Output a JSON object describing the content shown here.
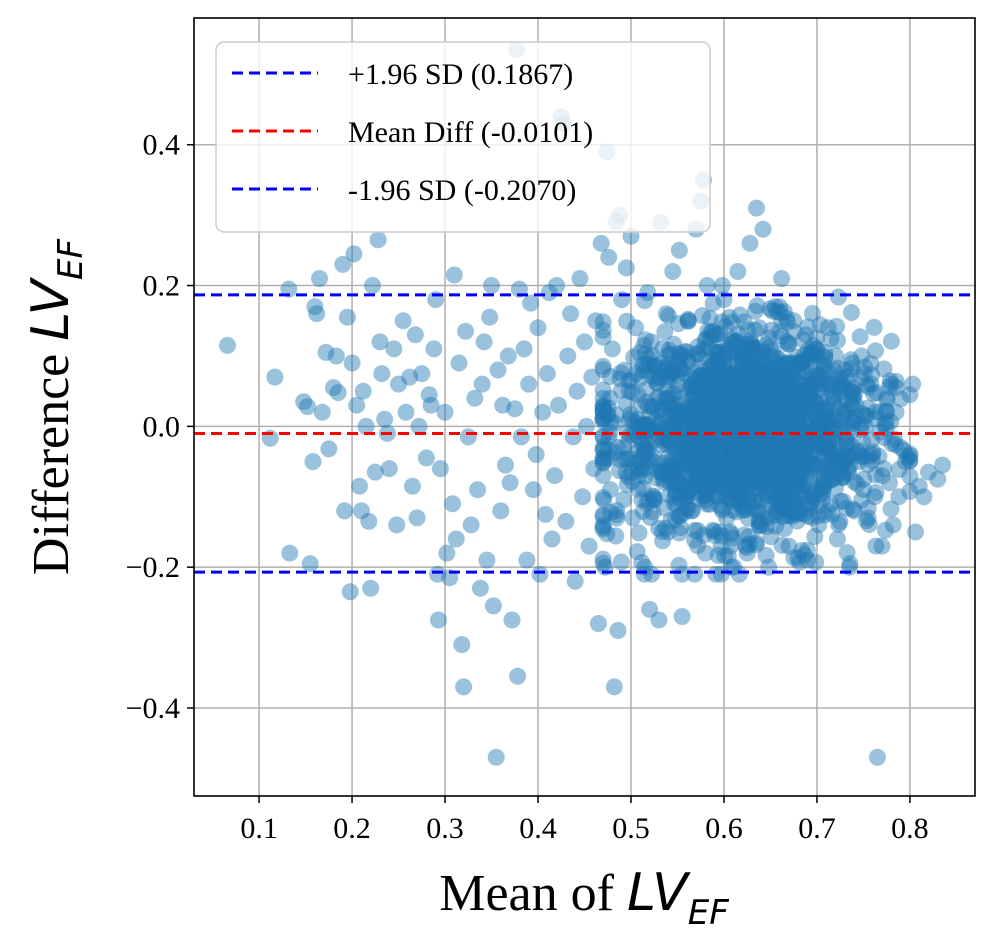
{
  "chart_data": {
    "type": "scatter",
    "title": "",
    "xlabel": {
      "prefix": "Mean of ",
      "symbol": "LV",
      "subscript": "EF"
    },
    "ylabel": {
      "prefix": "Difference ",
      "symbol": "LV",
      "subscript": "EF"
    },
    "xlim": [
      0.03,
      0.87
    ],
    "ylim": [
      -0.525,
      0.58
    ],
    "x_ticks": [
      {
        "value": 0.1,
        "label": "0.1"
      },
      {
        "value": 0.2,
        "label": "0.2"
      },
      {
        "value": 0.3,
        "label": "0.3"
      },
      {
        "value": 0.4,
        "label": "0.4"
      },
      {
        "value": 0.5,
        "label": "0.5"
      },
      {
        "value": 0.6,
        "label": "0.6"
      },
      {
        "value": 0.7,
        "label": "0.7"
      },
      {
        "value": 0.8,
        "label": "0.8"
      }
    ],
    "y_ticks": [
      {
        "value": 0.4,
        "label": "0.4"
      },
      {
        "value": 0.2,
        "label": "0.2"
      },
      {
        "value": 0.0,
        "label": "0.0"
      },
      {
        "value": -0.2,
        "label": "−0.2"
      },
      {
        "value": -0.4,
        "label": "−0.4"
      }
    ],
    "grid": true,
    "legend_position": "top-left",
    "point_color": "#1f77b4",
    "point_alpha": 0.45,
    "reference_lines": [
      {
        "name": "upper-limit",
        "label": "+1.96 SD (0.1867)",
        "value": 0.1867,
        "color": "#0000ff",
        "style": "dashed"
      },
      {
        "name": "mean-diff",
        "label": "Mean Diff (-0.0101)",
        "value": -0.0101,
        "color": "#ff0000",
        "style": "dashed"
      },
      {
        "name": "lower-limit",
        "label": "-1.96 SD (-0.2070)",
        "value": -0.207,
        "color": "#0000ff",
        "style": "dashed"
      }
    ],
    "scatter_points": [
      [
        0.066,
        0.115
      ],
      [
        0.112,
        -0.017
      ],
      [
        0.117,
        0.07
      ],
      [
        0.132,
        0.195
      ],
      [
        0.133,
        -0.18
      ],
      [
        0.148,
        0.035
      ],
      [
        0.152,
        0.028
      ],
      [
        0.155,
        -0.195
      ],
      [
        0.158,
        -0.05
      ],
      [
        0.16,
        0.17
      ],
      [
        0.162,
        0.16
      ],
      [
        0.165,
        0.21
      ],
      [
        0.168,
        0.02
      ],
      [
        0.172,
        0.105
      ],
      [
        0.175,
        -0.032
      ],
      [
        0.18,
        0.055
      ],
      [
        0.183,
        0.1
      ],
      [
        0.185,
        0.048
      ],
      [
        0.19,
        0.23
      ],
      [
        0.192,
        -0.12
      ],
      [
        0.195,
        0.155
      ],
      [
        0.198,
        -0.235
      ],
      [
        0.2,
        0.09
      ],
      [
        0.202,
        0.245
      ],
      [
        0.205,
        0.03
      ],
      [
        0.208,
        -0.085
      ],
      [
        0.21,
        -0.12
      ],
      [
        0.212,
        0.05
      ],
      [
        0.215,
        0.0
      ],
      [
        0.218,
        -0.135
      ],
      [
        0.22,
        -0.23
      ],
      [
        0.222,
        0.2
      ],
      [
        0.225,
        -0.065
      ],
      [
        0.228,
        0.265
      ],
      [
        0.23,
        0.12
      ],
      [
        0.232,
        0.075
      ],
      [
        0.235,
        0.01
      ],
      [
        0.238,
        -0.01
      ],
      [
        0.24,
        -0.06
      ],
      [
        0.245,
        0.11
      ],
      [
        0.248,
        -0.14
      ],
      [
        0.25,
        0.06
      ],
      [
        0.255,
        0.15
      ],
      [
        0.258,
        0.02
      ],
      [
        0.262,
        0.07
      ],
      [
        0.265,
        -0.085
      ],
      [
        0.268,
        0.13
      ],
      [
        0.27,
        -0.13
      ],
      [
        0.272,
        0.0
      ],
      [
        0.275,
        0.075
      ],
      [
        0.28,
        -0.045
      ],
      [
        0.283,
        0.045
      ],
      [
        0.285,
        0.03
      ],
      [
        0.288,
        0.11
      ],
      [
        0.29,
        0.18
      ],
      [
        0.292,
        -0.21
      ],
      [
        0.293,
        -0.275
      ],
      [
        0.295,
        -0.06
      ],
      [
        0.3,
        0.02
      ],
      [
        0.302,
        -0.18
      ],
      [
        0.305,
        -0.215
      ],
      [
        0.308,
        -0.11
      ],
      [
        0.31,
        0.215
      ],
      [
        0.312,
        -0.16
      ],
      [
        0.315,
        0.09
      ],
      [
        0.318,
        -0.31
      ],
      [
        0.32,
        -0.37
      ],
      [
        0.322,
        0.135
      ],
      [
        0.325,
        -0.015
      ],
      [
        0.328,
        -0.14
      ],
      [
        0.332,
        0.04
      ],
      [
        0.335,
        -0.09
      ],
      [
        0.338,
        -0.23
      ],
      [
        0.34,
        0.06
      ],
      [
        0.342,
        0.12
      ],
      [
        0.345,
        -0.19
      ],
      [
        0.348,
        0.155
      ],
      [
        0.35,
        0.2
      ],
      [
        0.352,
        -0.255
      ],
      [
        0.355,
        -0.47
      ],
      [
        0.357,
        0.08
      ],
      [
        0.36,
        -0.12
      ],
      [
        0.362,
        0.03
      ],
      [
        0.365,
        -0.055
      ],
      [
        0.368,
        0.1
      ],
      [
        0.37,
        -0.08
      ],
      [
        0.372,
        -0.275
      ],
      [
        0.375,
        0.025
      ],
      [
        0.377,
        0.535
      ],
      [
        0.378,
        -0.355
      ],
      [
        0.38,
        0.195
      ],
      [
        0.382,
        -0.015
      ],
      [
        0.385,
        0.11
      ],
      [
        0.388,
        -0.19
      ],
      [
        0.39,
        0.06
      ],
      [
        0.392,
        0.175
      ],
      [
        0.395,
        -0.09
      ],
      [
        0.398,
        -0.04
      ],
      [
        0.4,
        0.14
      ],
      [
        0.402,
        -0.21
      ],
      [
        0.405,
        0.02
      ],
      [
        0.408,
        -0.125
      ],
      [
        0.41,
        0.075
      ],
      [
        0.412,
        0.19
      ],
      [
        0.415,
        -0.16
      ],
      [
        0.418,
        -0.07
      ],
      [
        0.42,
        0.2
      ],
      [
        0.422,
        0.03
      ],
      [
        0.425,
        0.44
      ],
      [
        0.428,
        0.43
      ],
      [
        0.43,
        -0.135
      ],
      [
        0.432,
        0.1
      ],
      [
        0.435,
        0.16
      ],
      [
        0.438,
        -0.015
      ],
      [
        0.44,
        -0.22
      ],
      [
        0.442,
        0.05
      ],
      [
        0.445,
        0.21
      ],
      [
        0.448,
        -0.1
      ],
      [
        0.45,
        0.12
      ],
      [
        0.452,
        0.0
      ],
      [
        0.455,
        -0.17
      ],
      [
        0.458,
        0.07
      ],
      [
        0.46,
        -0.06
      ],
      [
        0.462,
        0.15
      ],
      [
        0.465,
        -0.28
      ],
      [
        0.468,
        0.26
      ],
      [
        0.47,
        0.03
      ],
      [
        0.472,
        -0.2
      ],
      [
        0.474,
        0.39
      ],
      [
        0.476,
        0.24
      ],
      [
        0.478,
        -0.09
      ],
      [
        0.48,
        0.11
      ],
      [
        0.482,
        -0.37
      ],
      [
        0.484,
        0.29
      ],
      [
        0.486,
        -0.29
      ],
      [
        0.488,
        0.3
      ],
      [
        0.49,
        0.18
      ],
      [
        0.492,
        -0.03
      ],
      [
        0.495,
        0.225
      ],
      [
        0.498,
        0.05
      ],
      [
        0.5,
        0.27
      ],
      [
        0.502,
        -0.13
      ],
      [
        0.505,
        0.14
      ],
      [
        0.508,
        -0.06
      ],
      [
        0.51,
        0.0
      ],
      [
        0.512,
        0.08
      ],
      [
        0.515,
        -0.2
      ],
      [
        0.518,
        0.19
      ],
      [
        0.52,
        -0.26
      ],
      [
        0.522,
        0.12
      ],
      [
        0.525,
        -0.1
      ],
      [
        0.528,
        0.04
      ],
      [
        0.53,
        -0.275
      ],
      [
        0.532,
        0.29
      ],
      [
        0.535,
        -0.02
      ],
      [
        0.538,
        0.16
      ],
      [
        0.54,
        -0.15
      ],
      [
        0.542,
        0.07
      ],
      [
        0.545,
        0.22
      ],
      [
        0.548,
        -0.08
      ],
      [
        0.55,
        0.01
      ],
      [
        0.552,
        0.25
      ],
      [
        0.555,
        -0.27
      ],
      [
        0.558,
        0.1
      ],
      [
        0.56,
        -0.05
      ],
      [
        0.562,
        0.15
      ],
      [
        0.565,
        -0.12
      ],
      [
        0.568,
        0.05
      ],
      [
        0.57,
        0.28
      ],
      [
        0.572,
        -0.02
      ],
      [
        0.575,
        0.32
      ],
      [
        0.578,
        0.35
      ],
      [
        0.58,
        -0.18
      ],
      [
        0.582,
        0.2
      ],
      [
        0.585,
        0.0
      ],
      [
        0.588,
        0.09
      ],
      [
        0.59,
        -0.09
      ],
      [
        0.592,
        0.13
      ],
      [
        0.595,
        -0.15
      ],
      [
        0.598,
        0.03
      ],
      [
        0.6,
        0.18
      ],
      [
        0.602,
        -0.06
      ],
      [
        0.605,
        0.07
      ],
      [
        0.608,
        -0.2
      ],
      [
        0.61,
        0.12
      ],
      [
        0.612,
        -0.03
      ],
      [
        0.615,
        0.22
      ],
      [
        0.618,
        0.02
      ],
      [
        0.62,
        -0.11
      ],
      [
        0.622,
        0.09
      ],
      [
        0.625,
        -0.18
      ],
      [
        0.628,
        0.26
      ],
      [
        0.63,
        0.04
      ],
      [
        0.632,
        -0.07
      ],
      [
        0.635,
        0.31
      ],
      [
        0.638,
        0.14
      ],
      [
        0.64,
        -0.14
      ],
      [
        0.642,
        0.28
      ],
      [
        0.645,
        0.06
      ],
      [
        0.648,
        -0.2
      ],
      [
        0.65,
        0.1
      ],
      [
        0.652,
        -0.02
      ],
      [
        0.655,
        0.17
      ],
      [
        0.658,
        -0.1
      ],
      [
        0.66,
        0.02
      ],
      [
        0.662,
        0.21
      ],
      [
        0.665,
        -0.06
      ],
      [
        0.668,
        0.12
      ],
      [
        0.67,
        -0.17
      ],
      [
        0.672,
        0.05
      ],
      [
        0.675,
        0.15
      ],
      [
        0.678,
        -0.12
      ],
      [
        0.68,
        0.0
      ],
      [
        0.682,
        0.09
      ],
      [
        0.685,
        -0.05
      ],
      [
        0.688,
        0.13
      ],
      [
        0.69,
        -0.19
      ],
      [
        0.692,
        0.03
      ],
      [
        0.695,
        0.07
      ],
      [
        0.698,
        -0.09
      ],
      [
        0.7,
        0.11
      ],
      [
        0.702,
        -0.14
      ],
      [
        0.705,
        0.01
      ],
      [
        0.708,
        0.08
      ],
      [
        0.71,
        -0.03
      ],
      [
        0.712,
        0.14
      ],
      [
        0.715,
        -0.11
      ],
      [
        0.718,
        0.04
      ],
      [
        0.72,
        0.1
      ],
      [
        0.722,
        -0.16
      ],
      [
        0.725,
        0.06
      ],
      [
        0.728,
        -0.07
      ],
      [
        0.73,
        0.08
      ],
      [
        0.732,
        -0.02
      ],
      [
        0.735,
        -0.2
      ],
      [
        0.738,
        0.05
      ],
      [
        0.74,
        -0.12
      ],
      [
        0.742,
        0.03
      ],
      [
        0.745,
        -0.05
      ],
      [
        0.748,
        0.1
      ],
      [
        0.75,
        -0.09
      ],
      [
        0.752,
        0.0
      ],
      [
        0.755,
        -0.13
      ],
      [
        0.758,
        0.06
      ],
      [
        0.76,
        -0.04
      ],
      [
        0.762,
        -0.1
      ],
      [
        0.765,
        -0.47
      ],
      [
        0.768,
        0.02
      ],
      [
        0.77,
        -0.17
      ],
      [
        0.772,
        -0.06
      ],
      [
        0.775,
        0.04
      ],
      [
        0.778,
        -0.08
      ],
      [
        0.78,
        0.06
      ],
      [
        0.782,
        -0.14
      ],
      [
        0.785,
        0.02
      ],
      [
        0.788,
        -0.1
      ],
      [
        0.79,
        -0.03
      ],
      [
        0.795,
        -0.05
      ],
      [
        0.8,
        0.045
      ],
      [
        0.803,
        0.06
      ],
      [
        0.806,
        -0.15
      ],
      [
        0.81,
        -0.085
      ],
      [
        0.815,
        -0.1
      ],
      [
        0.82,
        -0.065
      ],
      [
        0.83,
        -0.075
      ],
      [
        0.835,
        -0.055
      ]
    ],
    "dense_clusters": [
      {
        "cx": 0.62,
        "cy": 0.0,
        "sx": 0.05,
        "sy": 0.07,
        "n": 1100
      },
      {
        "cx": 0.68,
        "cy": -0.02,
        "sx": 0.05,
        "sy": 0.07,
        "n": 500
      },
      {
        "cx": 0.54,
        "cy": -0.02,
        "sx": 0.05,
        "sy": 0.08,
        "n": 280
      }
    ]
  }
}
